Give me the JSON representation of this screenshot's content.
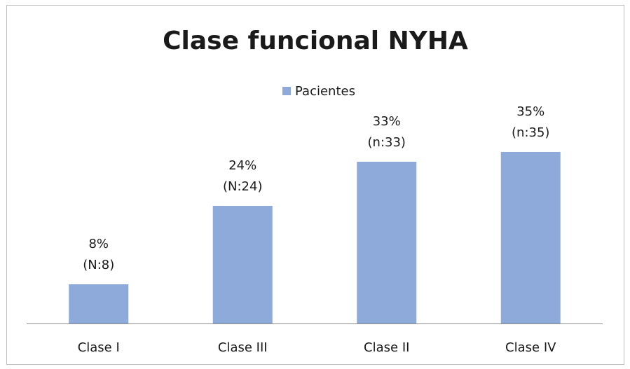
{
  "chart_data": {
    "type": "bar",
    "title": "Clase funcional NYHA",
    "categories": [
      "Clase I",
      "Clase III",
      "Clase II",
      "Clase IV"
    ],
    "series": [
      {
        "name": "Pacientes",
        "color": "#8eaadb",
        "values": [
          8,
          24,
          33,
          35
        ]
      }
    ],
    "value_labels": [
      "8%",
      "24%",
      "33%",
      "35%"
    ],
    "count_labels": [
      "(N:8)",
      "(N:24)",
      "(n:33)",
      "(n:35)"
    ],
    "legend": "top"
  }
}
